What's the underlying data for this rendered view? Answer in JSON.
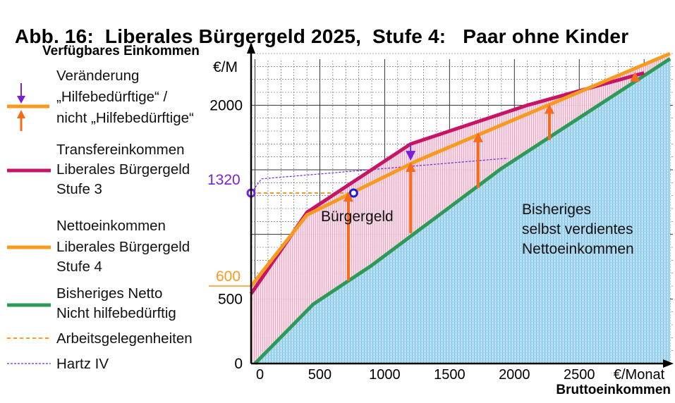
{
  "title": {
    "part1": "Abb. 16:  Liberales Bürgergeld 2025,  Stufe 4:",
    "part2": "Paar ohne Kinder"
  },
  "legend": {
    "change": [
      "Veränderung",
      "„Hilfebedürftige“ /",
      "nicht „Hilfebedürftige“"
    ],
    "transfer": [
      "Transfereinkommen",
      "Liberales Bürgergeld",
      "Stufe 3"
    ],
    "netto": [
      "Nettoeinkommen",
      "Liberales Bürgergeld",
      "Stufe 4"
    ],
    "bisher": [
      "Bisheriges Netto",
      "Nicht hilfebedürftig"
    ],
    "arbeit": "Arbeitsgelegenheiten",
    "hartz": "Hartz IV"
  },
  "annotations": {
    "buergergeld": "Bürgergeld",
    "bisheriges": [
      "Bisheriges",
      "selbst verdientes",
      "Nettoeinkommen"
    ],
    "val_1320": "1320",
    "val_600": "600"
  },
  "colors": {
    "purple_red": "#c81466",
    "orange": "#f79a1e",
    "green": "#2e9a58",
    "arrow_orange": "#f76c1a",
    "arrow_purple": "#7a1fd6",
    "hartz": "#7a22d9",
    "fill_blue": "#a9d6ec",
    "fill_pink": "#f2c2d6"
  },
  "chart_data": {
    "type": "line",
    "xlabel": "Bruttoeinkommen",
    "ylabel": "Verfügbares Einkommen",
    "y_unit": "€/M",
    "x_unit": "€/Monat",
    "xlim": [
      -30,
      3200
    ],
    "ylim": [
      0,
      2400
    ],
    "x_ticks": [
      0,
      500,
      1000,
      1500,
      2000,
      2500
    ],
    "y_ticks": [
      0,
      500,
      1000,
      1500,
      2000
    ],
    "y_tick_labels": [
      "0",
      "500",
      "",
      "",
      "2000"
    ],
    "grid": true,
    "series": [
      {
        "name": "Transfereinkommen Liberales Bürgergeld Stufe 3",
        "x": [
          -30,
          400,
          1200,
          2100,
          3000
        ],
        "y": [
          540,
          1170,
          1700,
          2000,
          2250
        ]
      },
      {
        "name": "Nettoeinkommen Liberales Bürgergeld Stufe 4",
        "x": [
          -30,
          400,
          1250,
          3200
        ],
        "y": [
          600,
          1150,
          1570,
          2400
        ]
      },
      {
        "name": "Bisheriges Netto Nicht hilfebedürftig",
        "x": [
          0,
          450,
          900,
          1900,
          3200
        ],
        "y": [
          0,
          460,
          760,
          1510,
          2360
        ]
      }
    ],
    "arbeitsgelegenheiten": {
      "x": [
        -30,
        760
      ],
      "y": [
        1320,
        1320
      ]
    },
    "hartz_iv": {
      "x": [
        -30,
        50,
        1950
      ],
      "y": [
        1320,
        1430,
        1590
      ]
    },
    "change_arrows": [
      {
        "x": 720,
        "from": 640,
        "to": 1330
      },
      {
        "x": 1200,
        "from": 1010,
        "to": 1560
      },
      {
        "x": 1720,
        "from": 1360,
        "to": 1790
      },
      {
        "x": 2270,
        "from": 1730,
        "to": 2010
      },
      {
        "x": 2930,
        "from": 2180,
        "to": 2260
      }
    ],
    "purple_arrow": {
      "x": 1200,
      "from": 1700,
      "to": 1570
    },
    "markers": [
      {
        "x": -30,
        "y": 1320
      },
      {
        "x": 760,
        "y": 1320
      }
    ]
  }
}
